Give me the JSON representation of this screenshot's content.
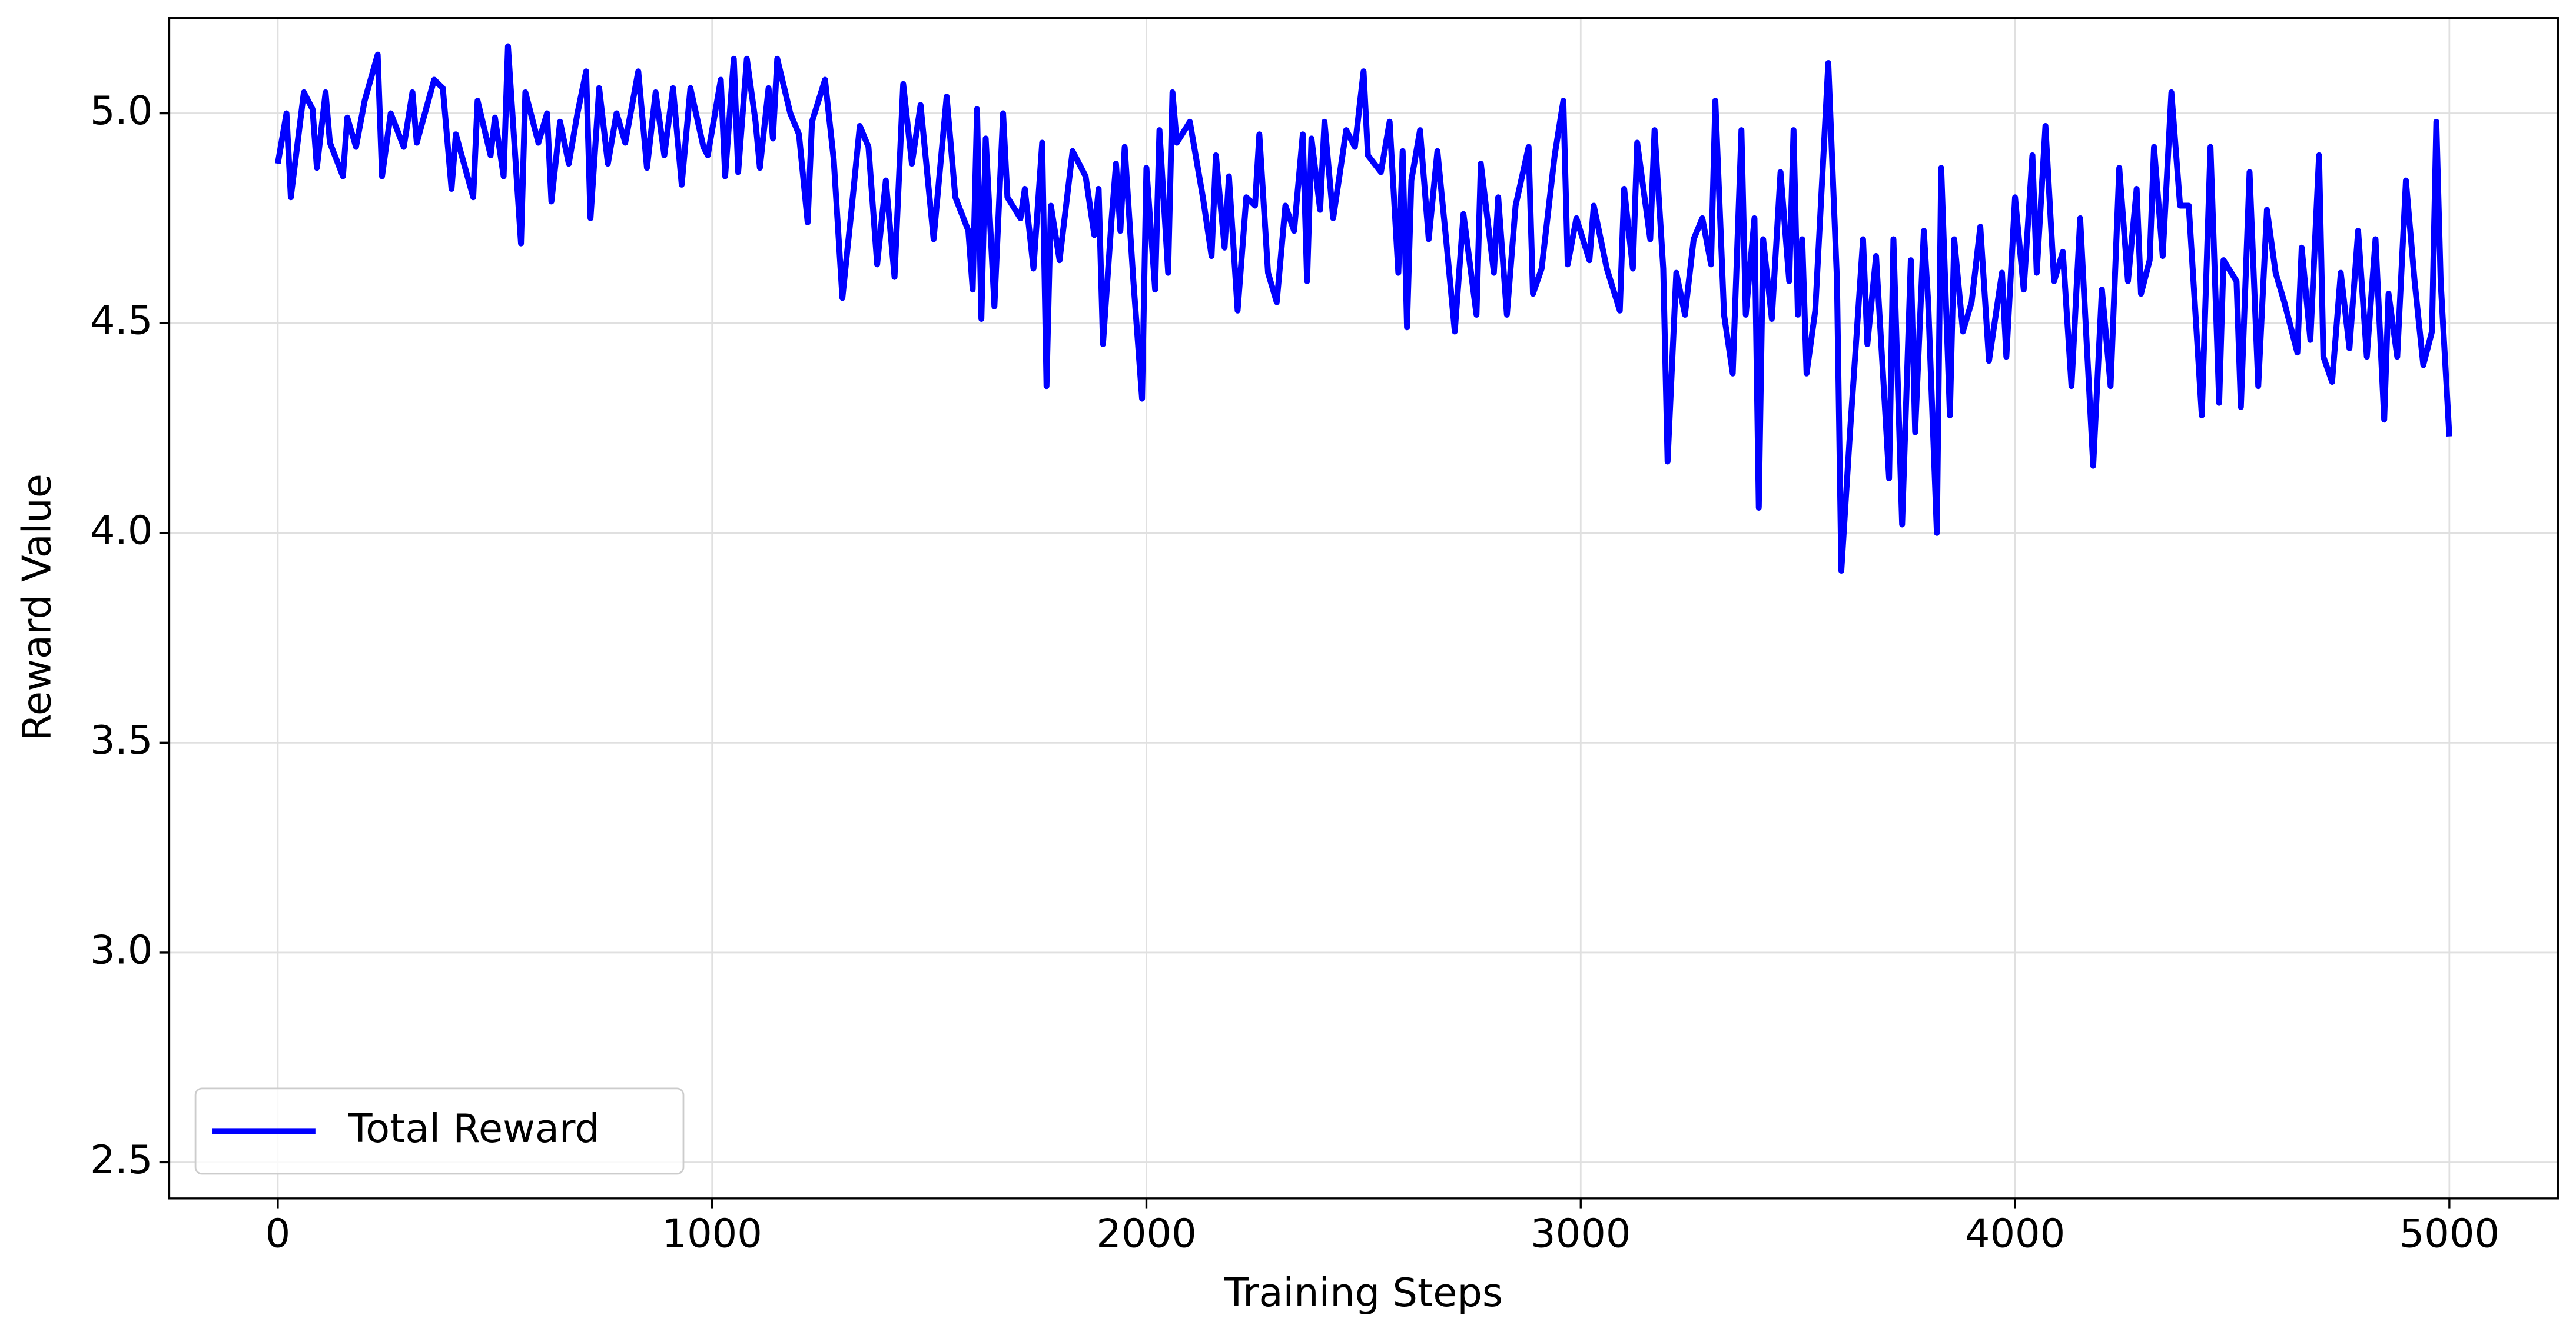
{
  "chart_data": {
    "type": "line",
    "xlabel": "Training Steps",
    "ylabel": "Reward Value",
    "x": [
      0,
      20,
      30,
      60,
      80,
      90,
      110,
      120,
      150,
      160,
      180,
      200,
      230,
      240,
      260,
      290,
      310,
      320,
      360,
      380,
      400,
      410,
      450,
      460,
      490,
      500,
      520,
      530,
      560,
      570,
      600,
      620,
      630,
      650,
      670,
      690,
      710,
      720,
      740,
      760,
      780,
      800,
      830,
      850,
      870,
      890,
      910,
      930,
      950,
      980,
      990,
      1020,
      1030,
      1050,
      1060,
      1080,
      1100,
      1110,
      1130,
      1140,
      1150,
      1180,
      1200,
      1220,
      1230,
      1260,
      1280,
      1300,
      1320,
      1340,
      1360,
      1380,
      1400,
      1420,
      1440,
      1460,
      1480,
      1510,
      1540,
      1560,
      1590,
      1600,
      1610,
      1620,
      1630,
      1650,
      1670,
      1680,
      1710,
      1720,
      1740,
      1760,
      1770,
      1780,
      1800,
      1830,
      1860,
      1880,
      1890,
      1900,
      1920,
      1930,
      1940,
      1950,
      1970,
      1990,
      2000,
      2020,
      2030,
      2050,
      2060,
      2070,
      2100,
      2130,
      2150,
      2160,
      2180,
      2190,
      2210,
      2230,
      2250,
      2260,
      2280,
      2300,
      2320,
      2340,
      2360,
      2370,
      2380,
      2400,
      2410,
      2430,
      2460,
      2480,
      2500,
      2510,
      2540,
      2560,
      2580,
      2590,
      2600,
      2610,
      2630,
      2650,
      2670,
      2690,
      2710,
      2730,
      2760,
      2770,
      2800,
      2810,
      2830,
      2850,
      2880,
      2890,
      2910,
      2940,
      2960,
      2970,
      2990,
      3020,
      3030,
      3060,
      3090,
      3100,
      3120,
      3130,
      3160,
      3170,
      3190,
      3200,
      3220,
      3240,
      3260,
      3280,
      3300,
      3310,
      3330,
      3350,
      3370,
      3380,
      3400,
      3410,
      3420,
      3440,
      3460,
      3480,
      3490,
      3500,
      3510,
      3520,
      3540,
      3570,
      3590,
      3600,
      3620,
      3650,
      3660,
      3680,
      3710,
      3720,
      3740,
      3760,
      3770,
      3790,
      3800,
      3820,
      3830,
      3850,
      3860,
      3880,
      3900,
      3920,
      3940,
      3970,
      3980,
      4000,
      4020,
      4040,
      4050,
      4070,
      4090,
      4110,
      4130,
      4150,
      4160,
      4180,
      4200,
      4220,
      4240,
      4260,
      4280,
      4290,
      4310,
      4320,
      4340,
      4360,
      4380,
      4400,
      4430,
      4450,
      4470,
      4480,
      4510,
      4520,
      4540,
      4560,
      4580,
      4600,
      4620,
      4650,
      4660,
      4680,
      4700,
      4710,
      4730,
      4750,
      4770,
      4790,
      4810,
      4830,
      4850,
      4860,
      4880,
      4900,
      4920,
      4940,
      4960,
      4970,
      4980,
      5000
    ],
    "series": [
      {
        "name": "Total Reward",
        "color": "#0000ff",
        "values": [
          4.88,
          5.0,
          4.8,
          5.05,
          5.01,
          4.87,
          5.05,
          4.93,
          4.85,
          4.99,
          4.92,
          5.03,
          5.14,
          4.85,
          5.0,
          4.92,
          5.05,
          4.93,
          5.08,
          5.06,
          4.82,
          4.95,
          4.8,
          5.03,
          4.9,
          4.99,
          4.85,
          5.16,
          4.69,
          5.05,
          4.93,
          5.0,
          4.79,
          4.98,
          4.88,
          5.0,
          5.1,
          4.75,
          5.06,
          4.88,
          5.0,
          4.93,
          5.1,
          4.87,
          5.05,
          4.9,
          5.06,
          4.83,
          5.06,
          4.92,
          4.9,
          5.08,
          4.85,
          5.13,
          4.86,
          5.13,
          4.98,
          4.87,
          5.06,
          4.94,
          5.13,
          5.0,
          4.95,
          4.74,
          4.98,
          5.08,
          4.89,
          4.56,
          4.76,
          4.97,
          4.92,
          4.64,
          4.84,
          4.61,
          5.07,
          4.88,
          5.02,
          4.7,
          5.04,
          4.8,
          4.72,
          4.58,
          5.01,
          4.51,
          4.94,
          4.54,
          5.0,
          4.8,
          4.75,
          4.82,
          4.63,
          4.93,
          4.35,
          4.78,
          4.65,
          4.91,
          4.85,
          4.71,
          4.82,
          4.45,
          4.75,
          4.88,
          4.72,
          4.92,
          4.6,
          4.32,
          4.87,
          4.58,
          4.96,
          4.62,
          5.05,
          4.93,
          4.98,
          4.8,
          4.66,
          4.9,
          4.68,
          4.85,
          4.53,
          4.8,
          4.78,
          4.95,
          4.62,
          4.55,
          4.78,
          4.72,
          4.95,
          4.6,
          4.94,
          4.77,
          4.98,
          4.75,
          4.96,
          4.92,
          5.1,
          4.9,
          4.86,
          4.98,
          4.62,
          4.91,
          4.49,
          4.84,
          4.96,
          4.7,
          4.91,
          4.7,
          4.48,
          4.76,
          4.52,
          4.88,
          4.62,
          4.8,
          4.52,
          4.78,
          4.92,
          4.57,
          4.63,
          4.9,
          5.03,
          4.64,
          4.75,
          4.65,
          4.78,
          4.63,
          4.53,
          4.82,
          4.63,
          4.93,
          4.7,
          4.96,
          4.63,
          4.17,
          4.62,
          4.52,
          4.7,
          4.75,
          4.64,
          5.03,
          4.52,
          4.38,
          4.96,
          4.52,
          4.75,
          4.06,
          4.7,
          4.51,
          4.86,
          4.6,
          4.96,
          4.52,
          4.7,
          4.38,
          4.53,
          5.12,
          4.6,
          3.91,
          4.24,
          4.7,
          4.45,
          4.66,
          4.13,
          4.7,
          4.02,
          4.65,
          4.24,
          4.72,
          4.55,
          4.0,
          4.87,
          4.28,
          4.7,
          4.48,
          4.55,
          4.73,
          4.41,
          4.62,
          4.42,
          4.8,
          4.58,
          4.9,
          4.62,
          4.97,
          4.6,
          4.67,
          4.35,
          4.75,
          4.55,
          4.16,
          4.58,
          4.35,
          4.87,
          4.6,
          4.82,
          4.57,
          4.65,
          4.92,
          4.66,
          5.05,
          4.78,
          4.78,
          4.28,
          4.92,
          4.31,
          4.65,
          4.6,
          4.3,
          4.86,
          4.35,
          4.77,
          4.62,
          4.55,
          4.43,
          4.68,
          4.46,
          4.9,
          4.42,
          4.36,
          4.62,
          4.44,
          4.72,
          4.42,
          4.7,
          4.27,
          4.57,
          4.42,
          4.84,
          4.6,
          4.4,
          4.48,
          4.98,
          4.6,
          4.23
        ]
      }
    ],
    "xlim": [
      -250,
      5250
    ],
    "ylim": [
      2.414,
      5.227
    ],
    "xticks": [
      0,
      1000,
      2000,
      3000,
      4000,
      5000
    ],
    "yticks": [
      2.5,
      {
        "value": 3,
        "label": "3.0"
      },
      3.5,
      {
        "value": 4,
        "label": "4.0"
      },
      4.5,
      {
        "value": 5,
        "label": "5.0"
      }
    ],
    "grid": true,
    "legend": "lower left"
  }
}
